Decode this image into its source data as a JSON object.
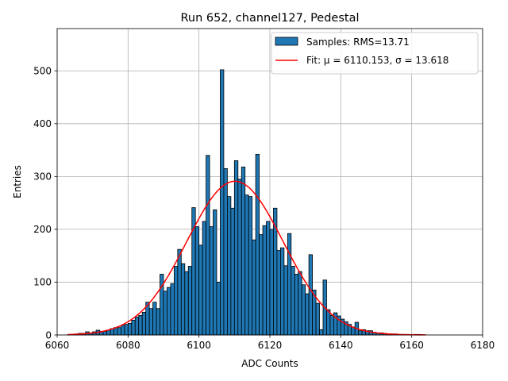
{
  "chart_data": {
    "type": "bar",
    "title": "Run 652, channel127, Pedestal",
    "xlabel": "ADC Counts",
    "ylabel": "Entries",
    "xlim": [
      6060,
      6180
    ],
    "ylim": [
      0,
      580
    ],
    "xticks": [
      6060,
      6080,
      6100,
      6120,
      6140,
      6160,
      6180
    ],
    "yticks": [
      0,
      100,
      200,
      300,
      400,
      500
    ],
    "grid": true,
    "legend_position": "top-right",
    "colors": {
      "bars": "#1f77b4",
      "fit": "#ff0000"
    },
    "series": [
      {
        "name": "Samples: RMS=13.71",
        "kind": "histogram",
        "bin_width": 1,
        "x": [
          6063,
          6064,
          6065,
          6066,
          6067,
          6068,
          6069,
          6070,
          6071,
          6072,
          6073,
          6074,
          6075,
          6076,
          6077,
          6078,
          6079,
          6080,
          6081,
          6082,
          6083,
          6084,
          6085,
          6086,
          6087,
          6088,
          6089,
          6090,
          6091,
          6092,
          6093,
          6094,
          6095,
          6096,
          6097,
          6098,
          6099,
          6100,
          6101,
          6102,
          6103,
          6104,
          6105,
          6106,
          6107,
          6108,
          6109,
          6110,
          6111,
          6112,
          6113,
          6114,
          6115,
          6116,
          6117,
          6118,
          6119,
          6120,
          6121,
          6122,
          6123,
          6124,
          6125,
          6126,
          6127,
          6128,
          6129,
          6130,
          6131,
          6132,
          6133,
          6134,
          6135,
          6136,
          6137,
          6138,
          6139,
          6140,
          6141,
          6142,
          6143,
          6144,
          6145,
          6146,
          6147,
          6148,
          6149,
          6150,
          6151,
          6152,
          6153,
          6154,
          6155,
          6156,
          6157,
          6158,
          6159,
          6160,
          6161,
          6162,
          6163
        ],
        "values": [
          1,
          1,
          2,
          3,
          3,
          6,
          4,
          6,
          9,
          7,
          7,
          9,
          12,
          14,
          14,
          18,
          20,
          22,
          28,
          34,
          37,
          43,
          62,
          50,
          62,
          50,
          115,
          83,
          90,
          97,
          130,
          162,
          135,
          120,
          130,
          241,
          205,
          170,
          215,
          340,
          205,
          237,
          100,
          502,
          315,
          262,
          240,
          330,
          295,
          318,
          265,
          262,
          180,
          342,
          190,
          207,
          215,
          200,
          240,
          160,
          165,
          131,
          192,
          130,
          115,
          120,
          95,
          78,
          152,
          85,
          60,
          10,
          104,
          48,
          37,
          42,
          36,
          30,
          25,
          20,
          15,
          24,
          8,
          10,
          8,
          8,
          5,
          4,
          4,
          3,
          2,
          2,
          2,
          1,
          1,
          1,
          1,
          1,
          1,
          1,
          0
        ]
      },
      {
        "name": "Fit: μ = 6110.153, σ = 13.618",
        "kind": "gaussian",
        "mu": 6110.153,
        "sigma": 13.618,
        "amplitude": 291,
        "x_range": [
          6063,
          6164
        ]
      }
    ]
  }
}
